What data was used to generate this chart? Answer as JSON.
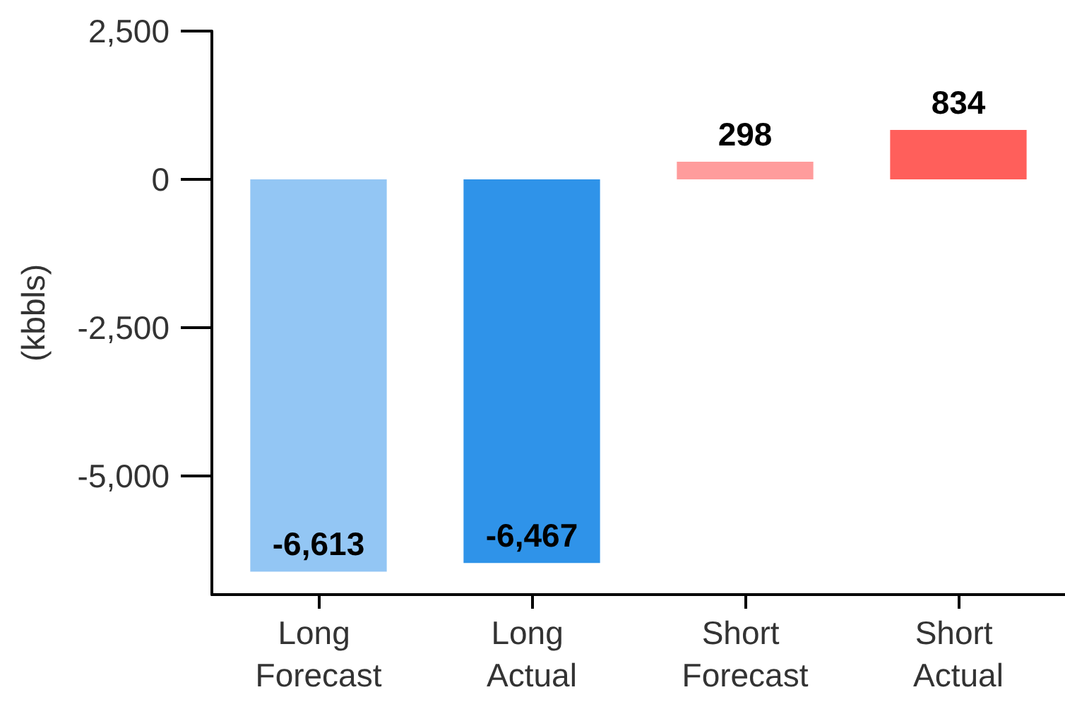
{
  "chart_data": {
    "type": "bar",
    "ylabel": "(kbbls)",
    "categories": [
      "Long Forecast",
      "Long Actual",
      "Short Forecast",
      "Short Actual"
    ],
    "values": [
      -6613,
      -6467,
      298,
      834
    ],
    "colors": [
      "#93c6f4",
      "#2f93e9",
      "#ff9c9c",
      "#ff5f5b"
    ],
    "value_labels": [
      "-6,613",
      "-6,467",
      "298",
      "834"
    ],
    "ylim": [
      -7000,
      2500
    ],
    "yticks": [
      {
        "value": -5000,
        "label": "-5,000"
      },
      {
        "value": -2500,
        "label": "-2,500"
      },
      0,
      {
        "value": 2500,
        "label": "2,500"
      }
    ],
    "grid": false
  }
}
